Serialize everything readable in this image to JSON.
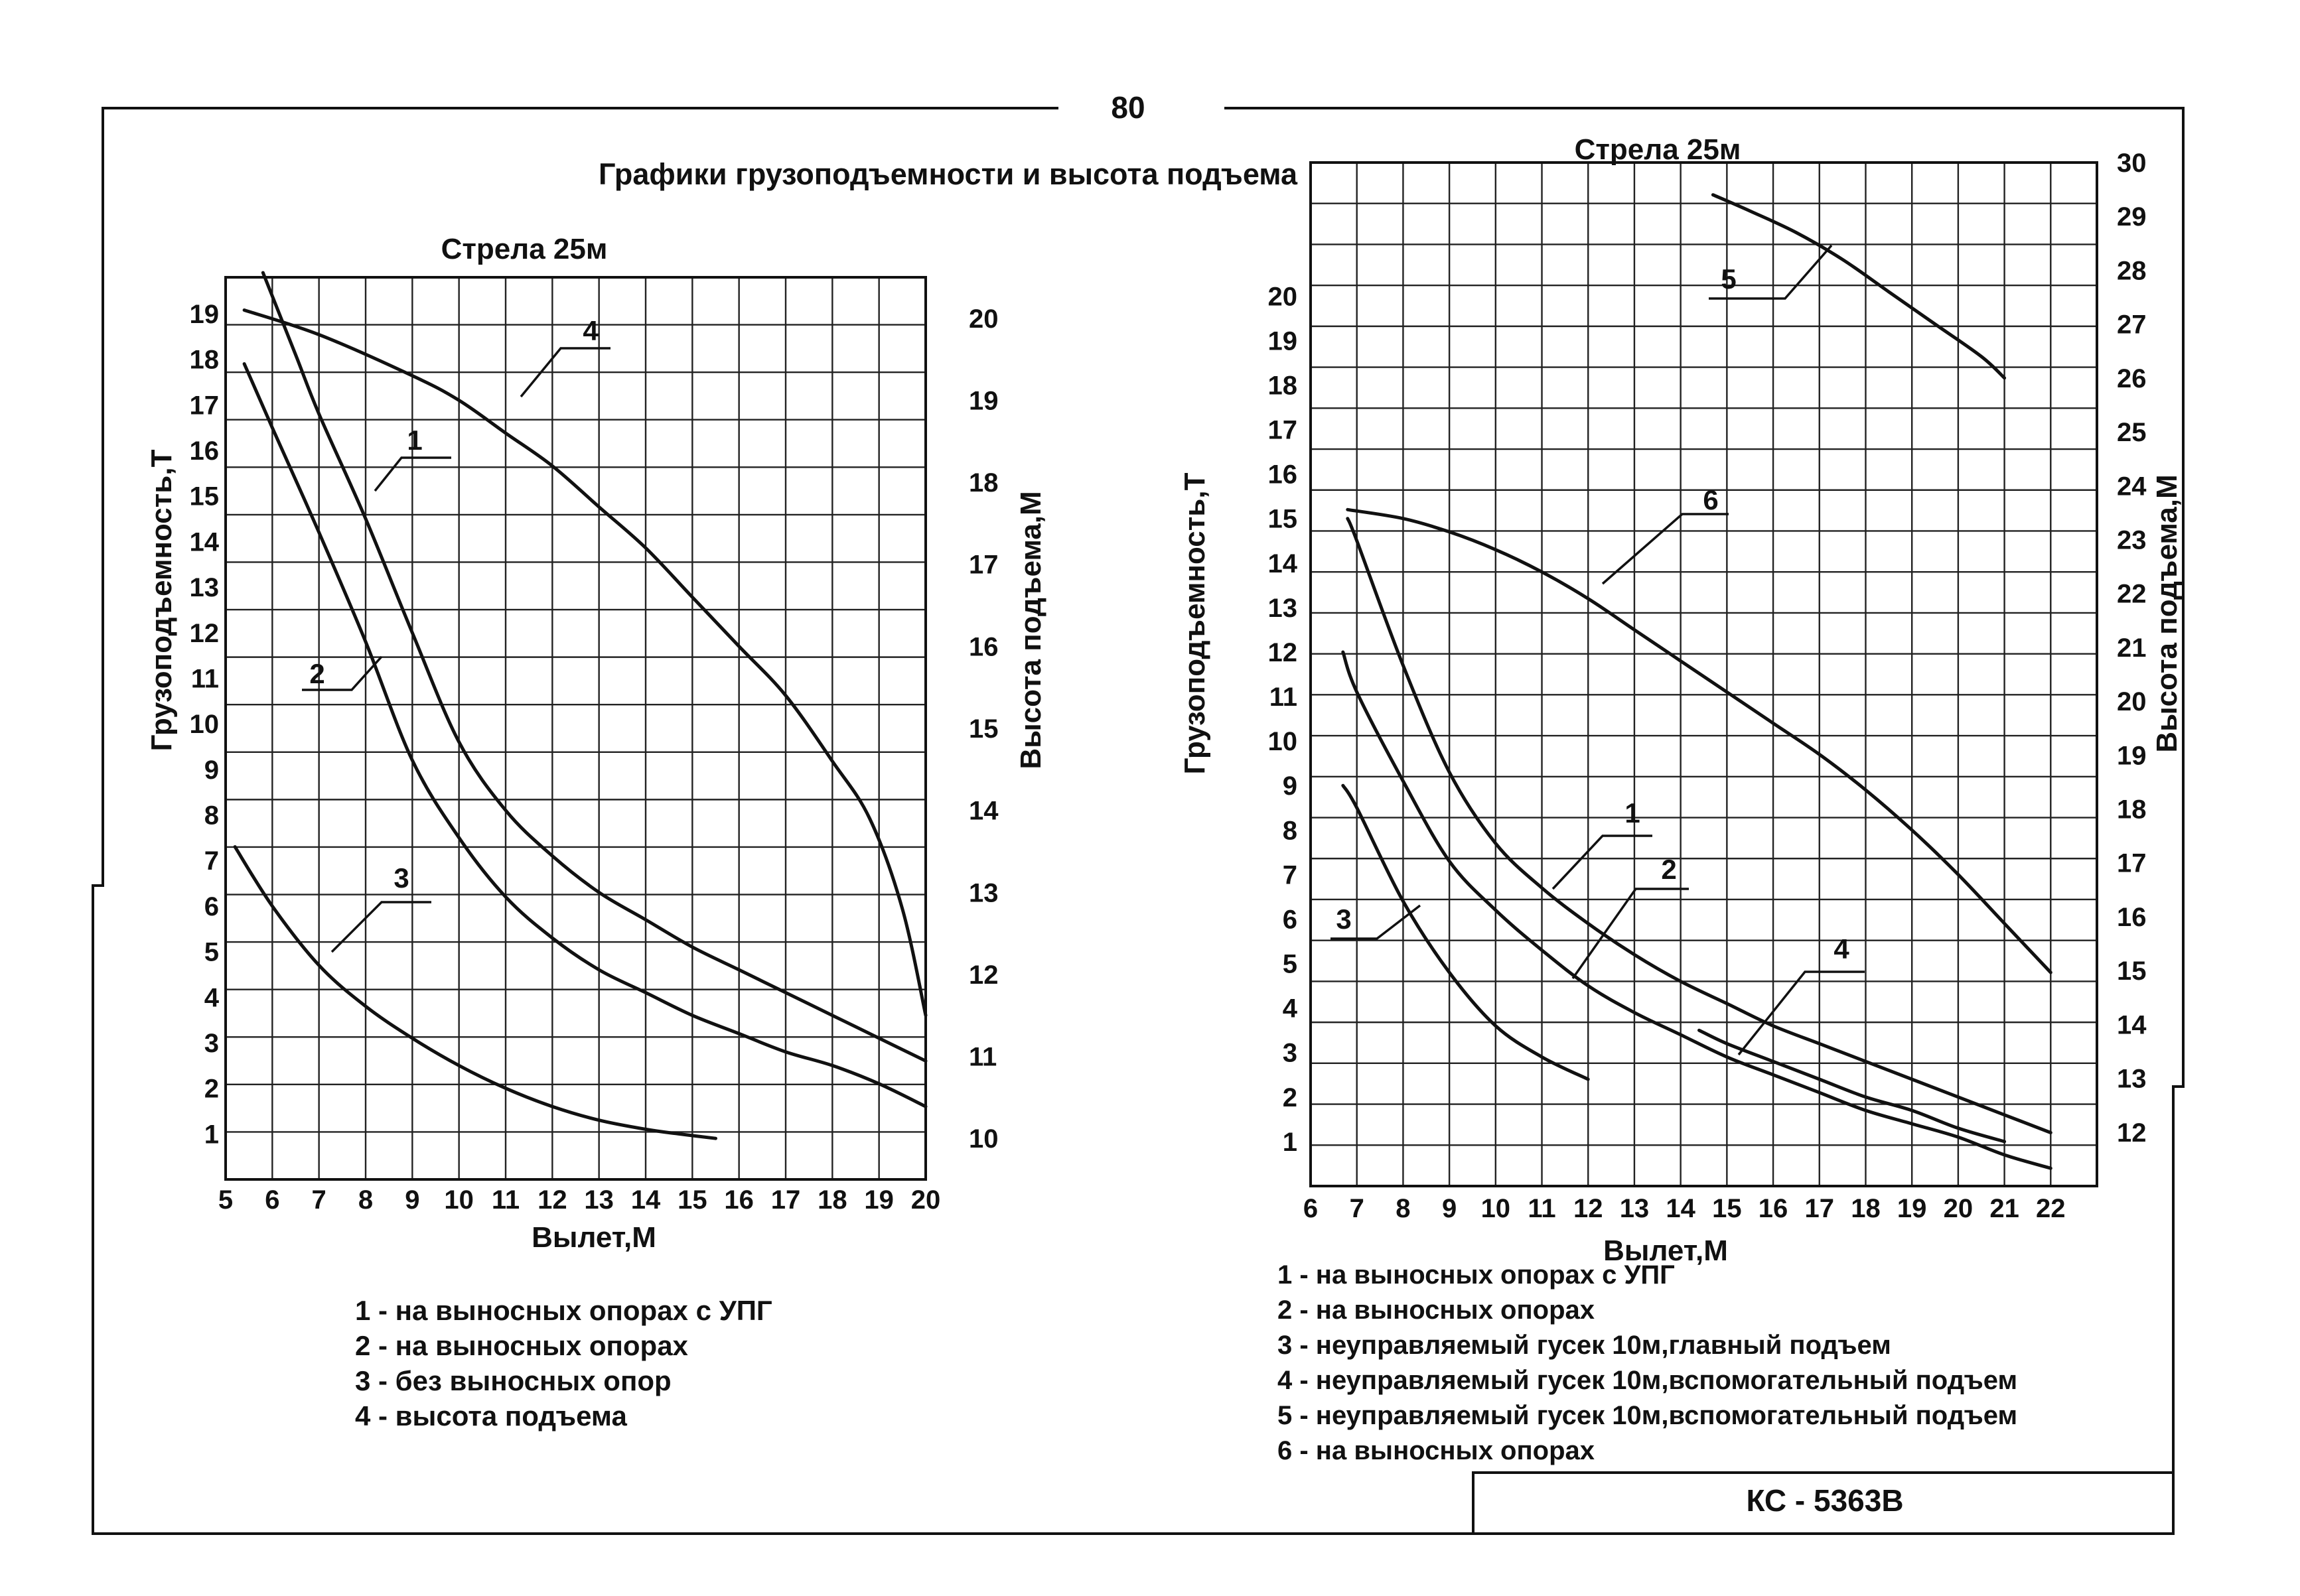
{
  "page_number": "80",
  "heading": "Графики грузоподъемности и высота подъема",
  "model_label": "КС - 5363В",
  "chart_data": [
    {
      "type": "line",
      "title": "Стрела 25м",
      "xlabel": "Вылет,М",
      "ylabel": "Грузоподъемность,Т",
      "y2label": "Высота подъема,М",
      "grid": true,
      "x_ticks": [
        "5",
        "6",
        "7",
        "8",
        "9",
        "10",
        "11",
        "12",
        "13",
        "14",
        "15",
        "16",
        "17",
        "18",
        "19",
        "20"
      ],
      "y_ticks": [
        "1",
        "2",
        "3",
        "4",
        "5",
        "6",
        "7",
        "8",
        "9",
        "10",
        "11",
        "12",
        "13",
        "14",
        "15",
        "16",
        "17",
        "18",
        "19"
      ],
      "y2_ticks": [
        "10",
        "11",
        "12",
        "13",
        "14",
        "15",
        "16",
        "17",
        "18",
        "19",
        "20"
      ],
      "xlim": [
        5,
        20
      ],
      "ylim": [
        0,
        19.8
      ],
      "y2lim": [
        9.5,
        20.5
      ],
      "series": [
        {
          "name": "1",
          "axis": "left",
          "points": [
            [
              5.8,
              19.9
            ],
            [
              6.5,
              18.1
            ],
            [
              7,
              16.8
            ],
            [
              8,
              14.5
            ],
            [
              9,
              12
            ],
            [
              10,
              9.6
            ],
            [
              11,
              8.1
            ],
            [
              12,
              7.1
            ],
            [
              13,
              6.3
            ],
            [
              14,
              5.7
            ],
            [
              15,
              5.1
            ],
            [
              16,
              4.6
            ],
            [
              17,
              4.1
            ],
            [
              18,
              3.6
            ],
            [
              19,
              3.1
            ],
            [
              20,
              2.6
            ]
          ]
        },
        {
          "name": "2",
          "axis": "left",
          "points": [
            [
              5.4,
              17.9
            ],
            [
              6,
              16.5
            ],
            [
              7,
              14.2
            ],
            [
              8,
              11.8
            ],
            [
              9,
              9.2
            ],
            [
              10,
              7.5
            ],
            [
              11,
              6.2
            ],
            [
              12,
              5.3
            ],
            [
              13,
              4.6
            ],
            [
              14,
              4.1
            ],
            [
              15,
              3.6
            ],
            [
              16,
              3.2
            ],
            [
              17,
              2.8
            ],
            [
              18,
              2.5
            ],
            [
              19,
              2.1
            ],
            [
              20,
              1.6
            ]
          ]
        },
        {
          "name": "3",
          "axis": "left",
          "points": [
            [
              5.2,
              7.3
            ],
            [
              6,
              6
            ],
            [
              7,
              4.7
            ],
            [
              8,
              3.8
            ],
            [
              9,
              3.1
            ],
            [
              10,
              2.5
            ],
            [
              11,
              2
            ],
            [
              12,
              1.6
            ],
            [
              13,
              1.3
            ],
            [
              14,
              1.1
            ],
            [
              14.7,
              1
            ],
            [
              15.5,
              0.9
            ]
          ]
        },
        {
          "name": "4",
          "axis": "right",
          "points": [
            [
              5.4,
              20.1
            ],
            [
              7,
              19.8
            ],
            [
              9,
              19.3
            ],
            [
              10,
              19
            ],
            [
              11,
              18.6
            ],
            [
              12,
              18.2
            ],
            [
              13,
              17.7
            ],
            [
              14,
              17.2
            ],
            [
              15,
              16.6
            ],
            [
              16,
              16
            ],
            [
              17,
              15.4
            ],
            [
              18,
              14.6
            ],
            [
              18.8,
              13.9
            ],
            [
              19.5,
              12.8
            ],
            [
              20,
              11.5
            ]
          ]
        }
      ],
      "legend": [
        {
          "label": "1 - на выносных опорах с УПГ"
        },
        {
          "label": "2 - на выносных опорах"
        },
        {
          "label": "3 - без выносных опор"
        },
        {
          "label": "4 - высота подъема"
        }
      ]
    },
    {
      "type": "line",
      "title": "Стрела 25м",
      "xlabel": "Вылет,М",
      "ylabel": "Грузоподъемность,Т",
      "y2label": "Высота подъема,М",
      "grid": true,
      "x_ticks": [
        "6",
        "7",
        "8",
        "9",
        "10",
        "11",
        "12",
        "13",
        "14",
        "15",
        "16",
        "17",
        "18",
        "19",
        "20",
        "21",
        "22"
      ],
      "y_ticks": [
        "1",
        "2",
        "3",
        "4",
        "5",
        "6",
        "7",
        "8",
        "9",
        "10",
        "11",
        "12",
        "13",
        "14",
        "15",
        "16",
        "17",
        "18",
        "19",
        "20"
      ],
      "y2_ticks": [
        "12",
        "13",
        "14",
        "15",
        "16",
        "17",
        "18",
        "19",
        "20",
        "21",
        "22",
        "23",
        "24",
        "25",
        "26",
        "27",
        "28",
        "29",
        "30"
      ],
      "xlim": [
        6,
        23
      ],
      "ylim": [
        0,
        23
      ],
      "y2lim": [
        11,
        30
      ],
      "series": [
        {
          "name": "1",
          "axis": "left",
          "points": [
            [
              6.8,
              15
            ],
            [
              7,
              14.5
            ],
            [
              8,
              11.7
            ],
            [
              9,
              9.3
            ],
            [
              10,
              7.7
            ],
            [
              11,
              6.7
            ],
            [
              12,
              5.9
            ],
            [
              13,
              5.2
            ],
            [
              14,
              4.6
            ],
            [
              15,
              4.1
            ],
            [
              16,
              3.6
            ],
            [
              17,
              3.2
            ],
            [
              18,
              2.8
            ],
            [
              19,
              2.4
            ],
            [
              20,
              2
            ],
            [
              21,
              1.6
            ],
            [
              22,
              1.2
            ]
          ]
        },
        {
          "name": "2",
          "axis": "left",
          "points": [
            [
              6.7,
              12
            ],
            [
              7,
              11.1
            ],
            [
              8,
              9.1
            ],
            [
              9,
              7.3
            ],
            [
              10,
              6.2
            ],
            [
              11,
              5.3
            ],
            [
              12,
              4.5
            ],
            [
              13,
              3.9
            ],
            [
              14,
              3.4
            ],
            [
              15,
              2.9
            ],
            [
              16,
              2.5
            ],
            [
              17,
              2.1
            ],
            [
              18,
              1.7
            ],
            [
              19,
              1.4
            ],
            [
              20,
              1.1
            ],
            [
              21,
              0.7
            ],
            [
              22,
              0.4
            ]
          ]
        },
        {
          "name": "3",
          "axis": "left",
          "points": [
            [
              6.7,
              9
            ],
            [
              7,
              8.5
            ],
            [
              8,
              6.4
            ],
            [
              9,
              4.8
            ],
            [
              10,
              3.6
            ],
            [
              11,
              2.9
            ],
            [
              12,
              2.4
            ]
          ]
        },
        {
          "name": "4",
          "axis": "left",
          "points": [
            [
              14.4,
              3.5
            ],
            [
              15,
              3.2
            ],
            [
              16,
              2.8
            ],
            [
              17,
              2.4
            ],
            [
              18,
              2
            ],
            [
              19,
              1.7
            ],
            [
              20,
              1.3
            ],
            [
              21,
              1
            ]
          ]
        },
        {
          "name": "5",
          "axis": "right",
          "points": [
            [
              14.7,
              29.4
            ],
            [
              15.5,
              29.1
            ],
            [
              16.5,
              28.7
            ],
            [
              17.5,
              28.2
            ],
            [
              18.5,
              27.6
            ],
            [
              19.5,
              27
            ],
            [
              20.5,
              26.4
            ],
            [
              21,
              26
            ]
          ]
        },
        {
          "name": "6",
          "axis": "left",
          "points": [
            [
              6.8,
              15.2
            ],
            [
              8,
              15
            ],
            [
              9,
              14.7
            ],
            [
              10,
              14.3
            ],
            [
              11,
              13.8
            ],
            [
              12,
              13.2
            ],
            [
              13,
              12.5
            ],
            [
              14,
              11.8
            ],
            [
              15,
              11.1
            ],
            [
              16,
              10.4
            ],
            [
              17,
              9.7
            ],
            [
              18,
              8.9
            ],
            [
              19,
              8
            ],
            [
              20,
              7
            ],
            [
              21,
              5.9
            ],
            [
              22,
              4.8
            ]
          ]
        }
      ],
      "legend": [
        {
          "label": "1 - на выносных опорах с УПГ"
        },
        {
          "label": "2 - на выносных опорах"
        },
        {
          "label": "3 - неуправляемый гусек 10м,главный подъем"
        },
        {
          "label": "4 - неуправляемый гусек 10м,вспомогательный подъем"
        },
        {
          "label": "5 - неуправляемый гусек 10м,вспомогательный подъем"
        },
        {
          "label": "6 - на выносных опорах"
        }
      ]
    }
  ]
}
